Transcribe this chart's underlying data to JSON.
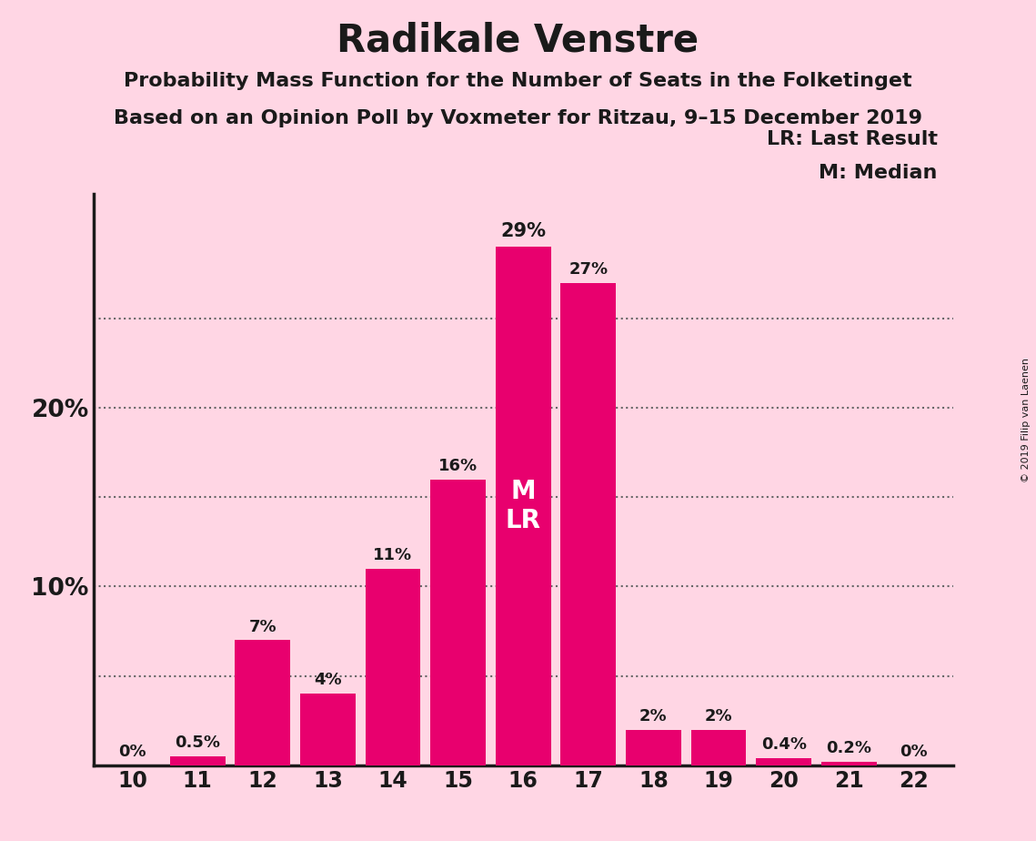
{
  "title": "Radikale Venstre",
  "subtitle1": "Probability Mass Function for the Number of Seats in the Folketinget",
  "subtitle2": "Based on an Opinion Poll by Voxmeter for Ritzau, 9–15 December 2019",
  "copyright": "© 2019 Filip van Laenen",
  "categories": [
    10,
    11,
    12,
    13,
    14,
    15,
    16,
    17,
    18,
    19,
    20,
    21,
    22
  ],
  "values": [
    0,
    0.5,
    7,
    4,
    11,
    16,
    29,
    27,
    2,
    2,
    0.4,
    0.2,
    0
  ],
  "bar_color": "#E8006E",
  "background_color": "#FFD6E4",
  "axis_color": "#1a1a1a",
  "text_color": "#1a1a1a",
  "bar_labels": [
    "0%",
    "0.5%",
    "7%",
    "4%",
    "11%",
    "16%",
    "29%",
    "27%",
    "2%",
    "2%",
    "0.4%",
    "0.2%",
    "0%"
  ],
  "median_seat": 16,
  "last_result_seat": 16,
  "legend_lr": "LR: Last Result",
  "legend_m": "M: Median",
  "dotted_grid_y": [
    5,
    10,
    15,
    20,
    25
  ],
  "ylim": [
    0,
    32
  ],
  "ytick_positions": [
    10,
    20
  ],
  "ytick_labels": [
    "10%",
    "20%"
  ]
}
